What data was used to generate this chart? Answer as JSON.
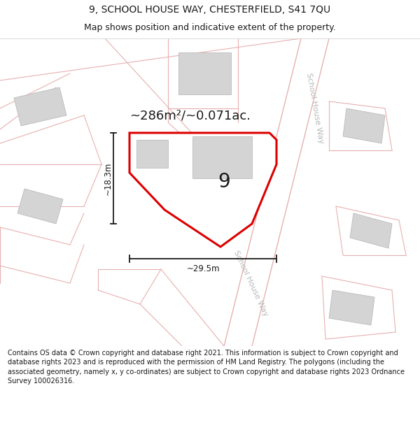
{
  "title_line1": "9, SCHOOL HOUSE WAY, CHESTERFIELD, S41 7QU",
  "title_line2": "Map shows position and indicative extent of the property.",
  "footer_text": "Contains OS data © Crown copyright and database right 2021. This information is subject to Crown copyright and database rights 2023 and is reproduced with the permission of HM Land Registry. The polygons (including the associated geometry, namely x, y co-ordinates) are subject to Crown copyright and database rights 2023 Ordnance Survey 100026316.",
  "area_label": "~286m²/~0.071ac.",
  "property_number": "9",
  "dim_width": "~29.5m",
  "dim_height": "~18.3m",
  "road_label_ne": "School House Way",
  "road_label_se": "School House Way",
  "map_bg": "#f5f0f0",
  "plot_outline_color": "#dd0000",
  "building_fill": "#d4d4d4",
  "building_edge": "#bbbbbb",
  "road_lines_color": "#e8b0b0",
  "text_color": "#1a1a1a",
  "dim_color": "#1a1a1a",
  "road_text_color": "#b8b8b8",
  "title_fontsize": 10,
  "subtitle_fontsize": 9,
  "footer_fontsize": 7,
  "area_fontsize": 13,
  "number_fontsize": 20,
  "dim_fontsize": 8.5
}
